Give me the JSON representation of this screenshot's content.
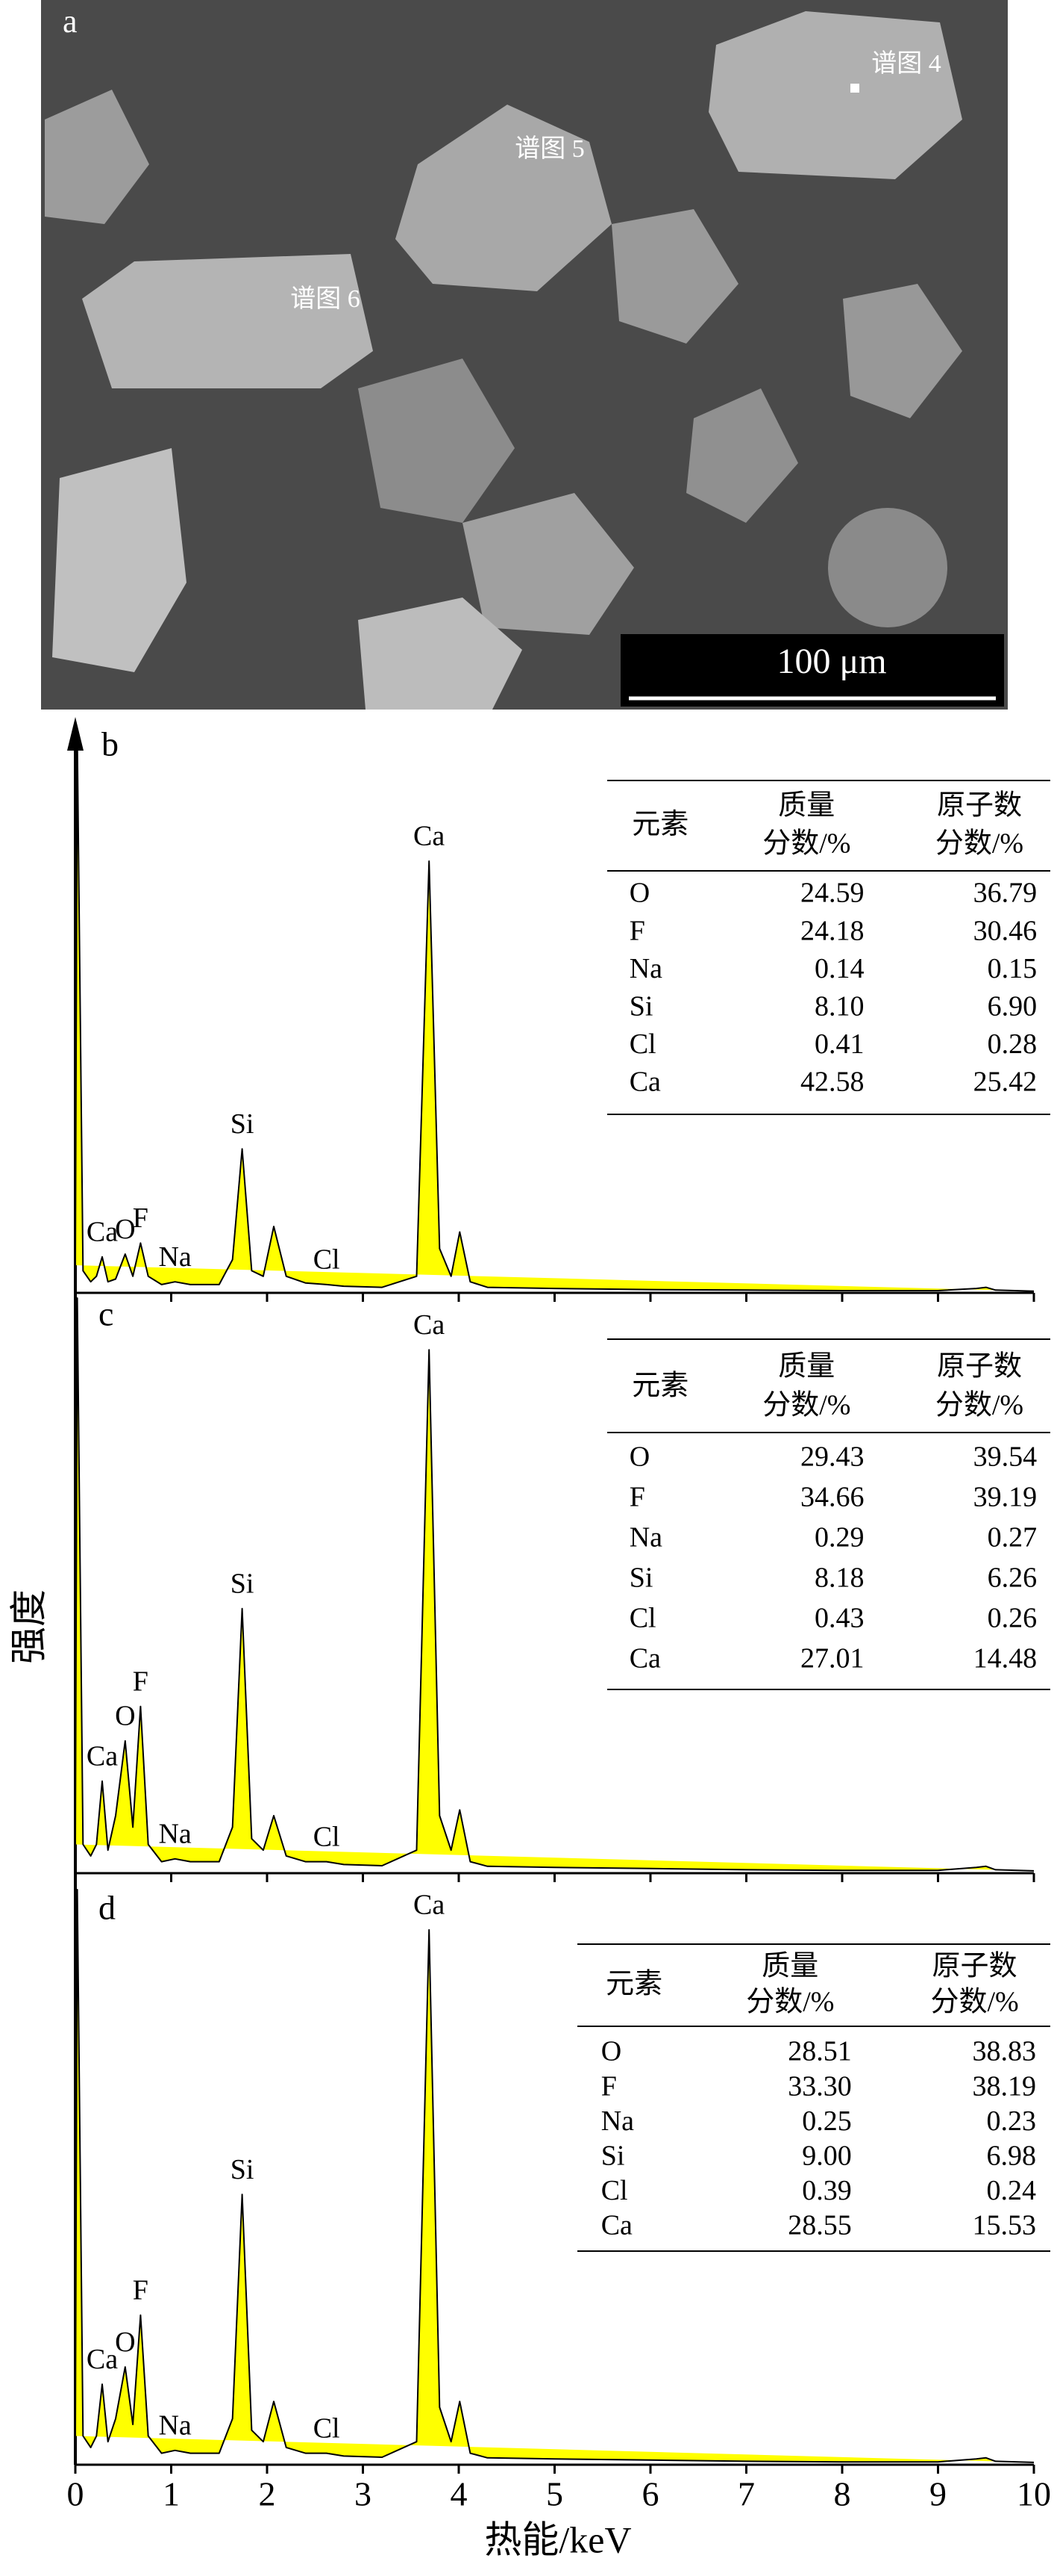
{
  "panel_a": {
    "label": "a",
    "spectrum_labels": [
      "谱图 4",
      "谱图 5",
      "谱图 6"
    ],
    "scale_bar": "100 μm"
  },
  "axis_labels": {
    "x": "热能/keV",
    "y": "强度"
  },
  "chart_data": [
    {
      "type": "line",
      "panel_label": "b",
      "color": "#ffff00",
      "xlim": [
        0,
        10
      ],
      "xticks": [
        0,
        1,
        2,
        3,
        4,
        5,
        6,
        7,
        8,
        9,
        10
      ],
      "ylim": [
        0,
        100
      ],
      "x": [
        0,
        0.02,
        0.08,
        0.16,
        0.22,
        0.28,
        0.34,
        0.42,
        0.52,
        0.6,
        0.68,
        0.76,
        0.9,
        1.04,
        1.2,
        1.5,
        1.64,
        1.74,
        1.84,
        1.96,
        2.07,
        2.2,
        2.4,
        2.62,
        2.8,
        3.2,
        3.56,
        3.69,
        3.8,
        3.92,
        4.01,
        4.12,
        4.3,
        5,
        6,
        7,
        8,
        9,
        9.4,
        9.5,
        9.6,
        10
      ],
      "values": [
        5,
        100,
        4,
        2,
        3,
        6.5,
        2,
        2.5,
        7,
        3,
        9,
        3,
        1.5,
        2,
        1.5,
        1.5,
        6,
        26,
        4,
        3,
        12,
        3,
        1.8,
        1.5,
        1.2,
        1,
        3,
        78,
        8,
        3,
        11,
        2,
        1,
        0.8,
        0.6,
        0.5,
        0.4,
        0.4,
        0.8,
        1,
        0.5,
        0.3
      ],
      "annotations": [
        {
          "label": "Ca",
          "x": 0.28
        },
        {
          "label": "O",
          "x": 0.52
        },
        {
          "label": "F",
          "x": 0.68
        },
        {
          "label": "Na",
          "x": 1.04
        },
        {
          "label": "Si",
          "x": 1.74
        },
        {
          "label": "Cl",
          "x": 2.62
        },
        {
          "label": "Ca",
          "x": 3.69
        }
      ],
      "table": {
        "header": [
          [
            "元素"
          ],
          [
            "质量",
            "分数/%"
          ],
          [
            "原子数",
            "分数/%"
          ]
        ],
        "rows": [
          [
            "O",
            "24.59",
            "36.79"
          ],
          [
            "F",
            "24.18",
            "30.46"
          ],
          [
            "Na",
            "0.14",
            "0.15"
          ],
          [
            "Si",
            "8.10",
            "6.90"
          ],
          [
            "Cl",
            "0.41",
            "0.28"
          ],
          [
            "Ca",
            "42.58",
            "25.42"
          ]
        ]
      }
    },
    {
      "type": "line",
      "panel_label": "c",
      "color": "#ffff00",
      "xlim": [
        0,
        10
      ],
      "xticks": [
        0,
        1,
        2,
        3,
        4,
        5,
        6,
        7,
        8,
        9,
        10
      ],
      "ylim": [
        0,
        100
      ],
      "x": [
        0,
        0.02,
        0.08,
        0.16,
        0.22,
        0.28,
        0.34,
        0.42,
        0.52,
        0.6,
        0.68,
        0.76,
        0.9,
        1.04,
        1.2,
        1.5,
        1.64,
        1.74,
        1.84,
        1.96,
        2.07,
        2.2,
        2.4,
        2.62,
        2.8,
        3.2,
        3.56,
        3.69,
        3.8,
        3.92,
        4.01,
        4.12,
        4.3,
        5,
        6,
        7,
        8,
        9,
        9.4,
        9.5,
        9.6,
        10
      ],
      "values": [
        5,
        100,
        5,
        3,
        5,
        16,
        4,
        10,
        23,
        8,
        29,
        5,
        2,
        2.5,
        2,
        2,
        8,
        46,
        6,
        4,
        10,
        3,
        2,
        2,
        1.5,
        1.3,
        4,
        91,
        10,
        4,
        11,
        2,
        1.2,
        1,
        0.8,
        0.6,
        0.5,
        0.5,
        1,
        1.2,
        0.6,
        0.4
      ],
      "annotations": [
        {
          "label": "Ca",
          "x": 0.28
        },
        {
          "label": "O",
          "x": 0.52
        },
        {
          "label": "F",
          "x": 0.68
        },
        {
          "label": "Na",
          "x": 1.04
        },
        {
          "label": "Si",
          "x": 1.74
        },
        {
          "label": "Cl",
          "x": 2.62
        },
        {
          "label": "Ca",
          "x": 3.69
        }
      ],
      "table": {
        "header": [
          [
            "元素"
          ],
          [
            "质量",
            "分数/%"
          ],
          [
            "原子数",
            "分数/%"
          ]
        ],
        "rows": [
          [
            "O",
            "29.43",
            "39.54"
          ],
          [
            "F",
            "34.66",
            "39.19"
          ],
          [
            "Na",
            "0.29",
            "0.27"
          ],
          [
            "Si",
            "8.18",
            "6.26"
          ],
          [
            "Cl",
            "0.43",
            "0.26"
          ],
          [
            "Ca",
            "27.01",
            "14.48"
          ]
        ]
      }
    },
    {
      "type": "line",
      "panel_label": "d",
      "color": "#ffff00",
      "xlim": [
        0,
        10
      ],
      "xticks": [
        0,
        1,
        2,
        3,
        4,
        5,
        6,
        7,
        8,
        9,
        10
      ],
      "ylim": [
        0,
        100
      ],
      "x": [
        0,
        0.02,
        0.08,
        0.16,
        0.22,
        0.28,
        0.34,
        0.42,
        0.52,
        0.6,
        0.68,
        0.76,
        0.9,
        1.04,
        1.2,
        1.5,
        1.64,
        1.74,
        1.84,
        1.96,
        2.07,
        2.2,
        2.4,
        2.62,
        2.8,
        3.2,
        3.56,
        3.69,
        3.8,
        3.92,
        4.01,
        4.12,
        4.3,
        5,
        6,
        7,
        8,
        9,
        9.4,
        9.5,
        9.6,
        10
      ],
      "values": [
        5,
        100,
        5,
        3,
        5,
        14,
        4,
        8,
        17,
        7,
        26,
        5,
        2,
        2.5,
        2,
        2,
        8,
        47,
        6,
        4,
        11,
        3,
        2,
        2,
        1.5,
        1.3,
        4,
        93,
        10,
        4,
        11,
        2,
        1.2,
        1,
        0.8,
        0.6,
        0.5,
        0.5,
        1,
        1.2,
        0.6,
        0.4
      ],
      "annotations": [
        {
          "label": "Ca",
          "x": 0.28
        },
        {
          "label": "O",
          "x": 0.52
        },
        {
          "label": "F",
          "x": 0.68
        },
        {
          "label": "Na",
          "x": 1.04
        },
        {
          "label": "Si",
          "x": 1.74
        },
        {
          "label": "Cl",
          "x": 2.62
        },
        {
          "label": "Ca",
          "x": 3.69
        }
      ],
      "table": {
        "header": [
          [
            "元素"
          ],
          [
            "质量",
            "分数/%"
          ],
          [
            "原子数",
            "分数/%"
          ]
        ],
        "rows": [
          [
            "O",
            "28.51",
            "38.83"
          ],
          [
            "F",
            "33.30",
            "38.19"
          ],
          [
            "Na",
            "0.25",
            "0.23"
          ],
          [
            "Si",
            "9.00",
            "6.98"
          ],
          [
            "Cl",
            "0.39",
            "0.24"
          ],
          [
            "Ca",
            "28.55",
            "15.53"
          ]
        ]
      }
    }
  ]
}
